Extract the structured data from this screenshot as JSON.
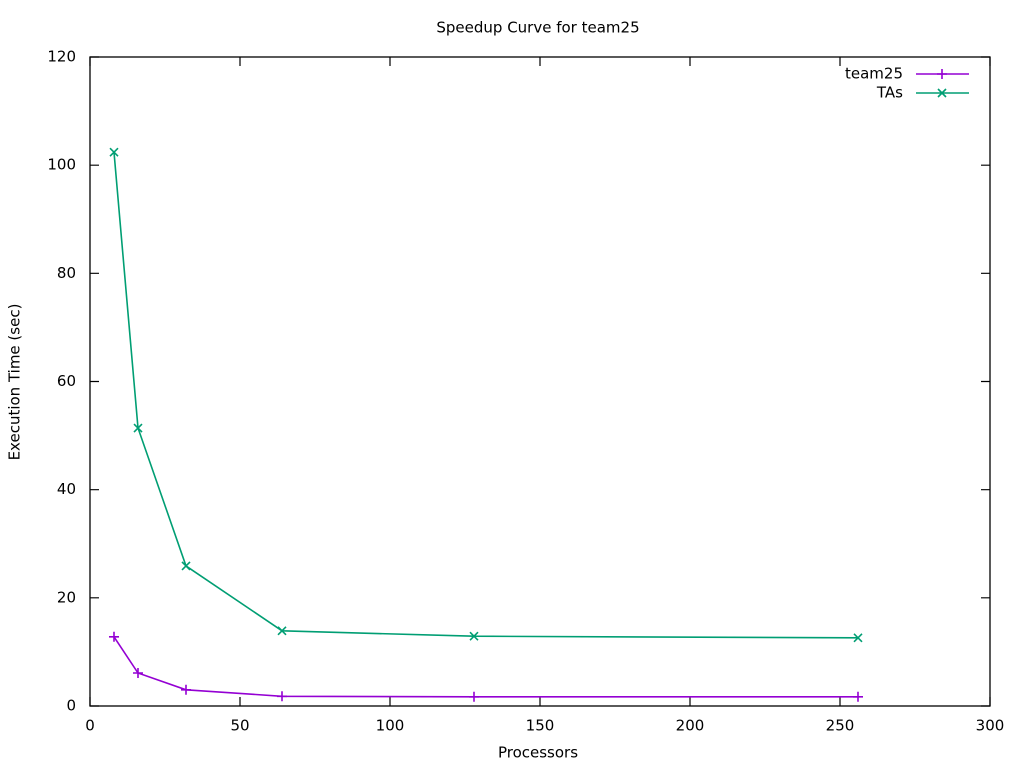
{
  "chart_data": {
    "type": "line",
    "title": "Speedup Curve for team25",
    "x_label": "Processors",
    "y_label": "Execution Time (sec)",
    "x": [
      8,
      16,
      32,
      64,
      128,
      256
    ],
    "series": [
      {
        "name": "team25",
        "color": "#9400d3",
        "marker": "plus",
        "values": [
          12.8,
          6.1,
          3.0,
          1.8,
          1.7,
          1.7
        ]
      },
      {
        "name": "TAs",
        "color": "#009e73",
        "marker": "cross",
        "values": [
          102.4,
          51.4,
          25.9,
          13.9,
          12.9,
          12.6
        ]
      }
    ],
    "xlim": [
      0,
      300
    ],
    "xticks": [
      0,
      50,
      100,
      150,
      200,
      250,
      300
    ],
    "ylim": [
      0,
      120
    ],
    "yticks": [
      0,
      20,
      40,
      60,
      80,
      100,
      120
    ],
    "grid": false,
    "legend": "top-right"
  }
}
